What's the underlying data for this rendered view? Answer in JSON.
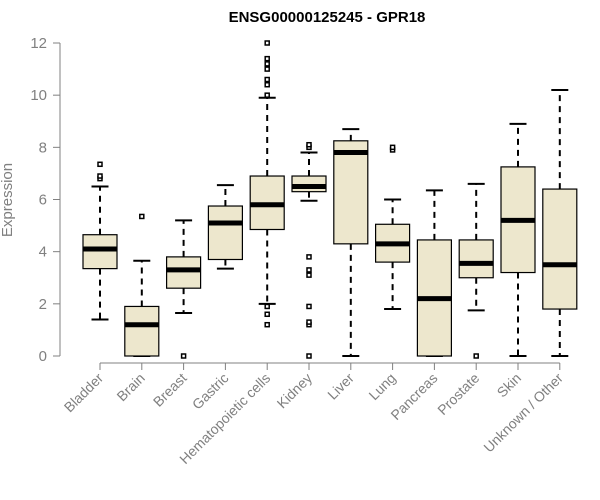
{
  "chart_data": {
    "type": "boxplot",
    "title": "ENSG00000125245 - GPR18",
    "xlabel": "",
    "ylabel": "Expression",
    "ylim": [
      0,
      12
    ],
    "yticks": [
      0,
      2,
      4,
      6,
      8,
      10,
      12
    ],
    "grid": false,
    "box_fill": "#ede7cd",
    "categories": [
      "Bladder",
      "Brain",
      "Breast",
      "Gastric",
      "Hematopoietic cells",
      "Kidney",
      "Liver",
      "Lung",
      "Pancreas",
      "Prostate",
      "Skin",
      "Unknown / Other"
    ],
    "boxes": [
      {
        "category": "Bladder",
        "whisker_low": 1.4,
        "q1": 3.35,
        "median": 4.1,
        "q3": 4.65,
        "whisker_high": 6.5,
        "outliers": [
          6.8,
          6.9,
          7.35
        ]
      },
      {
        "category": "Brain",
        "whisker_low": 0,
        "q1": 0,
        "median": 1.2,
        "q3": 1.9,
        "whisker_high": 3.65,
        "outliers": [
          5.35
        ]
      },
      {
        "category": "Breast",
        "whisker_low": 1.65,
        "q1": 2.6,
        "median": 3.3,
        "q3": 3.8,
        "whisker_high": 5.2,
        "outliers": [
          0
        ]
      },
      {
        "category": "Gastric",
        "whisker_low": 3.35,
        "q1": 3.7,
        "median": 5.1,
        "q3": 5.75,
        "whisker_high": 6.55,
        "outliers": []
      },
      {
        "category": "Hematopoietic cells",
        "whisker_low": 2.0,
        "q1": 4.85,
        "median": 5.8,
        "q3": 6.9,
        "whisker_high": 9.9,
        "outliers": [
          1.2,
          1.6,
          1.9,
          10.0,
          10.4,
          10.6,
          11.0,
          11.2,
          11.4,
          12.0
        ]
      },
      {
        "category": "Kidney",
        "whisker_low": 5.95,
        "q1": 6.3,
        "median": 6.5,
        "q3": 6.9,
        "whisker_high": 7.8,
        "outliers": [
          0,
          1.2,
          1.3,
          1.9,
          3.1,
          3.3,
          3.8,
          8.0,
          8.1
        ]
      },
      {
        "category": "Liver",
        "whisker_low": 0,
        "q1": 4.3,
        "median": 7.8,
        "q3": 8.25,
        "whisker_high": 8.7,
        "outliers": []
      },
      {
        "category": "Lung",
        "whisker_low": 1.8,
        "q1": 3.6,
        "median": 4.3,
        "q3": 5.05,
        "whisker_high": 6.0,
        "outliers": [
          7.9,
          8.0
        ]
      },
      {
        "category": "Pancreas",
        "whisker_low": 0,
        "q1": 0,
        "median": 2.2,
        "q3": 4.45,
        "whisker_high": 6.35,
        "outliers": []
      },
      {
        "category": "Prostate",
        "whisker_low": 1.75,
        "q1": 3.0,
        "median": 3.55,
        "q3": 4.45,
        "whisker_high": 6.6,
        "outliers": [
          0
        ]
      },
      {
        "category": "Skin",
        "whisker_low": 0,
        "q1": 3.2,
        "median": 5.2,
        "q3": 7.25,
        "whisker_high": 8.9,
        "outliers": []
      },
      {
        "category": "Unknown / Other",
        "whisker_low": 0,
        "q1": 1.8,
        "median": 3.5,
        "q3": 6.4,
        "whisker_high": 10.2,
        "outliers": []
      }
    ]
  }
}
